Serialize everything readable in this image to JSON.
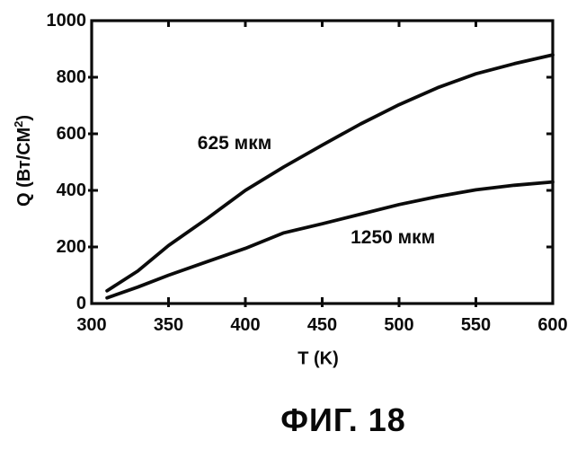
{
  "figure": {
    "caption": "ФИГ. 18"
  },
  "chart_data": {
    "type": "line",
    "title": "",
    "xlabel": "T (K)",
    "ylabel": "Q (Вт/СМ²)",
    "ylabel_parts": {
      "prefix": "Q (Вт/СМ",
      "sup": "2",
      "suffix": ")"
    },
    "xlim": [
      300,
      600
    ],
    "ylim": [
      0,
      1000
    ],
    "xticks": [
      300,
      350,
      400,
      450,
      500,
      550,
      600
    ],
    "yticks": [
      0,
      200,
      400,
      600,
      800,
      1000
    ],
    "grid": false,
    "frame": "box",
    "legend_position": "inline-annotations",
    "line_color": "#0b0b0b",
    "series": [
      {
        "name": "625 мкм",
        "x": [
          310,
          330,
          350,
          375,
          400,
          425,
          450,
          475,
          500,
          525,
          550,
          575,
          600
        ],
        "y": [
          45,
          115,
          205,
          300,
          400,
          483,
          560,
          635,
          703,
          763,
          812,
          848,
          879
        ],
        "label_pos": {
          "x": 393,
          "y": 565
        }
      },
      {
        "name": "1250 мкм",
        "x": [
          310,
          330,
          350,
          375,
          400,
          425,
          450,
          475,
          500,
          525,
          550,
          575,
          600
        ],
        "y": [
          20,
          58,
          100,
          148,
          195,
          250,
          282,
          316,
          350,
          378,
          402,
          418,
          430
        ],
        "label_pos": {
          "x": 496,
          "y": 232
        }
      }
    ]
  }
}
